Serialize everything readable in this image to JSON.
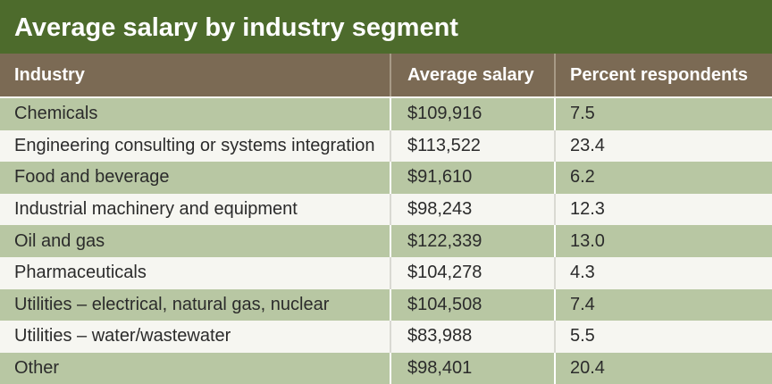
{
  "header": {
    "title": "Average salary by industry segment"
  },
  "table": {
    "columns": [
      "Industry",
      "Average salary",
      "Percent respondents"
    ],
    "rows": [
      [
        "Chemicals",
        "$109,916",
        "7.5"
      ],
      [
        "Engineering consulting or systems integration",
        "$113,522",
        "23.4"
      ],
      [
        "Food and beverage",
        "$91,610",
        "6.2"
      ],
      [
        "Industrial machinery and equipment",
        "$98,243",
        "12.3"
      ],
      [
        "Oil and gas",
        "$122,339",
        "13.0"
      ],
      [
        "Pharmaceuticals",
        "$104,278",
        "4.3"
      ],
      [
        "Utilities – electrical, natural gas, nuclear",
        "$104,508",
        "7.4"
      ],
      [
        "Utilities – water/wastewater",
        "$83,988",
        "5.5"
      ],
      [
        "Other",
        "$98,401",
        "20.4"
      ]
    ]
  }
}
